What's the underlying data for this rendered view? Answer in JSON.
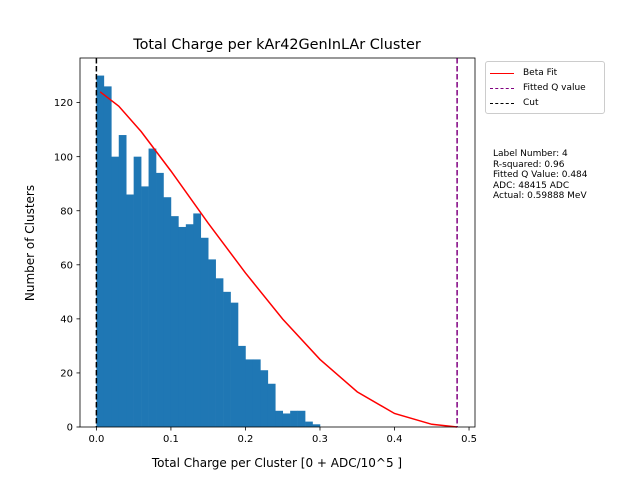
{
  "chart_data": {
    "type": "bar",
    "title": "Total Charge per kAr42GenInLAr Cluster",
    "xlabel": "Total Charge per Cluster [0 + ADC/10^5 ]",
    "ylabel": "Number of Clusters",
    "xlim": [
      -0.022,
      0.508
    ],
    "ylim": [
      0,
      136.5
    ],
    "xticks": [
      0.0,
      0.1,
      0.2,
      0.3,
      0.4,
      0.5
    ],
    "xtick_labels": [
      "0.0",
      "0.1",
      "0.2",
      "0.3",
      "0.4",
      "0.5"
    ],
    "yticks": [
      0,
      20,
      40,
      60,
      80,
      100,
      120
    ],
    "ytick_labels": [
      "0",
      "20",
      "40",
      "60",
      "80",
      "100",
      "120"
    ],
    "grid": false,
    "legend_position": "outside-top-right",
    "histogram": {
      "bin_start": 0.0,
      "bin_width": 0.01,
      "counts": [
        130,
        126,
        100,
        108,
        86,
        100,
        89,
        103,
        94,
        85,
        78,
        74,
        75,
        79,
        70,
        62,
        55,
        50,
        46,
        30,
        25,
        25,
        21,
        16,
        6,
        5,
        6,
        6,
        2,
        1
      ],
      "color": "#1f77b4"
    },
    "series": [
      {
        "name": "Beta Fit",
        "type": "line",
        "color": "#ff0000",
        "x": [
          0.005,
          0.03,
          0.06,
          0.1,
          0.15,
          0.2,
          0.25,
          0.3,
          0.35,
          0.4,
          0.45,
          0.484
        ],
        "y": [
          124,
          118.7,
          109.3,
          94.7,
          75.4,
          57,
          39.9,
          25,
          13,
          5,
          1,
          0
        ]
      }
    ],
    "vlines": [
      {
        "name": "Fitted Q value",
        "x": 0.484,
        "color": "#800080",
        "style": "dashed"
      },
      {
        "name": "Cut",
        "x": 0.0,
        "color": "#000000",
        "style": "dashed"
      }
    ],
    "legend": [
      {
        "label": "Beta Fit",
        "color": "#ff0000",
        "style": "solid"
      },
      {
        "label": "Fitted Q value",
        "color": "#800080",
        "style": "dashed"
      },
      {
        "label": "Cut",
        "color": "#000000",
        "style": "dashed"
      }
    ],
    "annotations": [
      "Label Number: 4",
      "R-squared: 0.96",
      "Fitted Q Value: 0.484",
      "ADC: 48415 ADC",
      "Actual: 0.59888 MeV"
    ]
  }
}
